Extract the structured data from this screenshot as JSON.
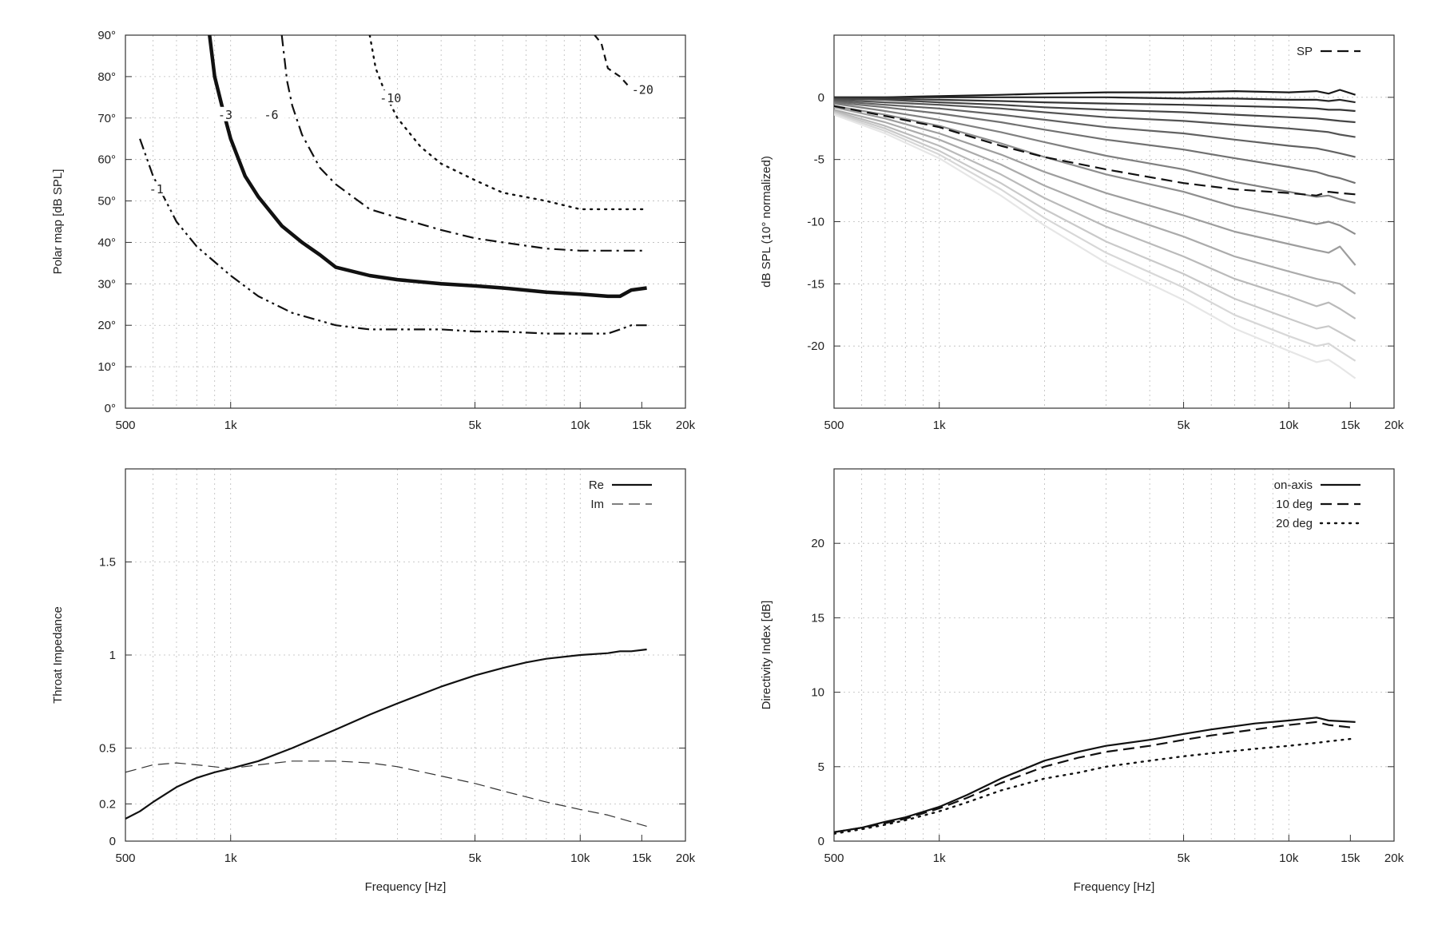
{
  "chart_data": [
    {
      "type": "line",
      "title": "",
      "xlabel": "",
      "ylabel": "Polar map [dB SPL]",
      "xscale": "log",
      "xlim": [
        500,
        20000
      ],
      "ylim": [
        0,
        90
      ],
      "grid": true,
      "xtick_labels": [
        "500",
        "1k",
        "5k",
        "10k",
        "15k",
        "20k"
      ],
      "ytick_labels": [
        "0°",
        "10°",
        "20°",
        "30°",
        "40°",
        "50°",
        "60°",
        "70°",
        "80°",
        "90°"
      ],
      "contour_labels": [
        "-1",
        "-3",
        "-6",
        "-10",
        "-20"
      ],
      "series": [
        {
          "label": "-1",
          "style": "dash-dot-dot",
          "x": [
            550,
            600,
            700,
            800,
            1000,
            1200,
            1500,
            2000,
            2500,
            3000,
            4000,
            5000,
            6000,
            8000,
            10000,
            12000,
            13000,
            14000,
            15500
          ],
          "y": [
            65,
            56,
            45,
            39,
            32,
            27,
            23,
            20,
            19,
            19,
            19,
            18.5,
            18.5,
            18,
            18,
            18,
            19,
            20,
            20
          ]
        },
        {
          "label": "-3",
          "style": "thick",
          "x": [
            870,
            900,
            950,
            1000,
            1100,
            1200,
            1400,
            1600,
            1800,
            2000,
            2500,
            3000,
            4000,
            5000,
            6000,
            8000,
            10000,
            12000,
            13000,
            14000,
            15500
          ],
          "y": [
            90,
            80,
            72,
            65,
            56,
            51,
            44,
            40,
            37,
            34,
            32,
            31,
            30,
            29.5,
            29,
            28,
            27.5,
            27,
            27,
            28.5,
            29
          ]
        },
        {
          "label": "-6",
          "style": "dash-dot",
          "x": [
            1400,
            1450,
            1500,
            1600,
            1800,
            2000,
            2500,
            3000,
            4000,
            5000,
            6000,
            8000,
            10000,
            12000,
            14000,
            15500
          ],
          "y": [
            90,
            79,
            73,
            66,
            58,
            54,
            48,
            46,
            43,
            41,
            40,
            38.5,
            38,
            38,
            38,
            38
          ]
        },
        {
          "label": "-10",
          "style": "dotted",
          "x": [
            2500,
            2600,
            2800,
            3000,
            3500,
            4000,
            5000,
            6000,
            8000,
            10000,
            12000,
            14000,
            15500
          ],
          "y": [
            90,
            82,
            75,
            70,
            63,
            59,
            55,
            52,
            50,
            48,
            48,
            48,
            48
          ]
        },
        {
          "label": "-20",
          "style": "dash",
          "x": [
            11000,
            11500,
            12000,
            13000,
            14000,
            15500
          ],
          "y": [
            90,
            88,
            82,
            80,
            77,
            78
          ]
        }
      ]
    },
    {
      "type": "line",
      "title": "",
      "xlabel": "",
      "ylabel": "dB SPL (10° normalized)",
      "xscale": "log",
      "xlim": [
        500,
        20000
      ],
      "ylim": [
        -25,
        5
      ],
      "grid": true,
      "xtick_labels": [
        "500",
        "1k",
        "5k",
        "10k",
        "15k",
        "20k"
      ],
      "ytick_labels": [
        "0",
        "-5",
        "-10",
        "-15",
        "-20"
      ],
      "legend": {
        "position": "top-right",
        "entries": [
          "SP"
        ]
      },
      "x": [
        500,
        700,
        1000,
        1500,
        2000,
        3000,
        5000,
        7000,
        10000,
        12000,
        13000,
        14000,
        15500
      ],
      "series": [
        {
          "name": "SP",
          "style": "dashed",
          "values": [
            -0.7,
            -1.5,
            -2.4,
            -3.9,
            -4.8,
            -5.8,
            -6.9,
            -7.4,
            -7.7,
            -7.9,
            -7.6,
            -7.7,
            -7.8
          ]
        }
      ],
      "fan_series": [
        {
          "values": [
            0,
            0,
            0.1,
            0.2,
            0.3,
            0.4,
            0.4,
            0.5,
            0.4,
            0.5,
            0.3,
            0.6,
            0.2
          ]
        },
        {
          "values": [
            0,
            0,
            0,
            0,
            0,
            0,
            -0.1,
            -0.1,
            -0.2,
            -0.2,
            -0.3,
            -0.2,
            -0.4
          ]
        },
        {
          "values": [
            -0.1,
            -0.1,
            -0.2,
            -0.3,
            -0.4,
            -0.5,
            -0.6,
            -0.7,
            -0.8,
            -0.9,
            -1.0,
            -1.0,
            -1.1
          ]
        },
        {
          "values": [
            -0.1,
            -0.2,
            -0.4,
            -0.6,
            -0.8,
            -1.0,
            -1.2,
            -1.4,
            -1.6,
            -1.7,
            -1.8,
            -1.9,
            -2.0
          ]
        },
        {
          "values": [
            -0.2,
            -0.4,
            -0.6,
            -0.9,
            -1.2,
            -1.6,
            -1.9,
            -2.2,
            -2.5,
            -2.7,
            -2.8,
            -3.0,
            -3.2
          ]
        },
        {
          "values": [
            -0.3,
            -0.6,
            -0.9,
            -1.4,
            -1.8,
            -2.4,
            -2.9,
            -3.4,
            -3.9,
            -4.1,
            -4.3,
            -4.5,
            -4.8
          ]
        },
        {
          "values": [
            -0.4,
            -0.8,
            -1.3,
            -2.0,
            -2.6,
            -3.4,
            -4.2,
            -4.9,
            -5.6,
            -6.0,
            -6.3,
            -6.5,
            -6.9
          ]
        },
        {
          "values": [
            -0.5,
            -1.1,
            -1.8,
            -2.8,
            -3.6,
            -4.7,
            -5.8,
            -6.8,
            -7.6,
            -8.0,
            -7.9,
            -8.2,
            -8.5
          ]
        },
        {
          "values": [
            -0.7,
            -1.4,
            -2.3,
            -3.7,
            -4.8,
            -6.2,
            -7.6,
            -8.8,
            -9.7,
            -10.2,
            -10.0,
            -10.3,
            -11.0
          ]
        },
        {
          "values": [
            -0.8,
            -1.7,
            -2.9,
            -4.6,
            -6.0,
            -7.7,
            -9.5,
            -10.8,
            -11.8,
            -12.3,
            -12.5,
            -12.0,
            -13.5
          ]
        },
        {
          "values": [
            -1.0,
            -2.0,
            -3.4,
            -5.4,
            -7.1,
            -9.1,
            -11.2,
            -12.8,
            -14.0,
            -14.6,
            -14.8,
            -15.0,
            -15.8
          ]
        },
        {
          "values": [
            -1.1,
            -2.3,
            -3.9,
            -6.2,
            -8.1,
            -10.4,
            -12.8,
            -14.6,
            -16.0,
            -16.8,
            -16.5,
            -17.0,
            -17.8
          ]
        },
        {
          "values": [
            -1.2,
            -2.5,
            -4.3,
            -6.9,
            -9.0,
            -11.6,
            -14.2,
            -16.2,
            -17.8,
            -18.6,
            -18.4,
            -18.9,
            -19.6
          ]
        },
        {
          "values": [
            -1.3,
            -2.7,
            -4.6,
            -7.4,
            -9.7,
            -12.5,
            -15.3,
            -17.5,
            -19.2,
            -20.0,
            -19.8,
            -20.4,
            -21.2
          ]
        },
        {
          "values": [
            -1.4,
            -2.9,
            -4.9,
            -7.9,
            -10.3,
            -13.3,
            -16.3,
            -18.6,
            -20.4,
            -21.3,
            -21.1,
            -21.7,
            -22.6
          ]
        }
      ]
    },
    {
      "type": "line",
      "title": "",
      "xlabel": "Frequency [Hz]",
      "ylabel": "Throat Impedance",
      "xscale": "log",
      "xlim": [
        500,
        20000
      ],
      "ylim": [
        0,
        2
      ],
      "grid": true,
      "xtick_labels": [
        "500",
        "1k",
        "5k",
        "10k",
        "15k",
        "20k"
      ],
      "ytick_labels": [
        "0",
        "0.2",
        "0.5",
        "1",
        "1.5"
      ],
      "legend": {
        "position": "top-right",
        "entries": [
          "Re",
          "Im"
        ]
      },
      "series": [
        {
          "name": "Re",
          "style": "solid",
          "x": [
            500,
            550,
            600,
            700,
            800,
            900,
            1000,
            1200,
            1500,
            2000,
            2500,
            3000,
            4000,
            5000,
            6000,
            7000,
            8000,
            10000,
            12000,
            13000,
            14000,
            15500
          ],
          "y": [
            0.12,
            0.16,
            0.21,
            0.29,
            0.34,
            0.37,
            0.39,
            0.43,
            0.5,
            0.6,
            0.68,
            0.74,
            0.83,
            0.89,
            0.93,
            0.96,
            0.98,
            1.0,
            1.01,
            1.02,
            1.02,
            1.03
          ]
        },
        {
          "name": "Im",
          "style": "dashed",
          "x": [
            500,
            600,
            700,
            800,
            1000,
            1200,
            1500,
            2000,
            2500,
            3000,
            4000,
            5000,
            6000,
            8000,
            10000,
            12000,
            15500
          ],
          "y": [
            0.37,
            0.41,
            0.42,
            0.41,
            0.39,
            0.41,
            0.43,
            0.43,
            0.42,
            0.4,
            0.35,
            0.31,
            0.27,
            0.21,
            0.17,
            0.14,
            0.08
          ]
        }
      ]
    },
    {
      "type": "line",
      "title": "",
      "xlabel": "Frequency [Hz]",
      "ylabel": "Directivity Index [dB]",
      "xscale": "log",
      "xlim": [
        500,
        20000
      ],
      "ylim": [
        0,
        25
      ],
      "grid": true,
      "xtick_labels": [
        "500",
        "1k",
        "5k",
        "10k",
        "15k",
        "20k"
      ],
      "ytick_labels": [
        "0",
        "5",
        "10",
        "15",
        "20"
      ],
      "legend": {
        "position": "top-right",
        "entries": [
          "on-axis",
          "10 deg",
          "20 deg"
        ]
      },
      "series": [
        {
          "name": "on-axis",
          "style": "solid",
          "x": [
            500,
            600,
            700,
            800,
            1000,
            1200,
            1500,
            2000,
            2500,
            3000,
            4000,
            5000,
            6000,
            8000,
            10000,
            12000,
            13000,
            15500
          ],
          "y": [
            0.6,
            0.9,
            1.3,
            1.6,
            2.3,
            3.1,
            4.2,
            5.4,
            6.0,
            6.4,
            6.8,
            7.2,
            7.5,
            7.9,
            8.1,
            8.3,
            8.1,
            8.0
          ]
        },
        {
          "name": "10 deg",
          "style": "dashed",
          "x": [
            500,
            600,
            700,
            800,
            1000,
            1200,
            1500,
            2000,
            2500,
            3000,
            4000,
            5000,
            6000,
            8000,
            10000,
            12000,
            13000,
            15500
          ],
          "y": [
            0.6,
            0.9,
            1.2,
            1.5,
            2.2,
            2.9,
            3.9,
            5.0,
            5.6,
            6.0,
            6.4,
            6.8,
            7.1,
            7.5,
            7.8,
            8.0,
            7.8,
            7.6
          ]
        },
        {
          "name": "20 deg",
          "style": "dotted",
          "x": [
            500,
            600,
            700,
            800,
            1000,
            1200,
            1500,
            2000,
            2500,
            3000,
            4000,
            5000,
            6000,
            8000,
            10000,
            12000,
            13000,
            15500
          ],
          "y": [
            0.5,
            0.8,
            1.1,
            1.4,
            2.0,
            2.6,
            3.4,
            4.2,
            4.6,
            5.0,
            5.4,
            5.7,
            5.9,
            6.2,
            6.4,
            6.6,
            6.7,
            6.9
          ]
        }
      ]
    }
  ]
}
